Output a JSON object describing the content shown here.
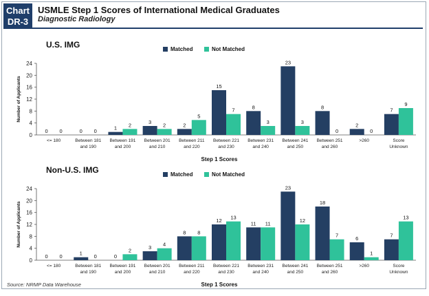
{
  "header": {
    "badge_line1": "Chart",
    "badge_line2": "DR-3",
    "title": "USMLE Step 1 Scores of International Medical Graduates",
    "subtitle": "Diagnostic Radiology"
  },
  "colors": {
    "matched": "#243f63",
    "not_matched": "#2fc29a",
    "accent": "#1f3e6a"
  },
  "source": "Source: NRMP Data Warehouse",
  "chart_data": [
    {
      "type": "bar",
      "title": "U.S. IMG",
      "xlabel": "Step 1 Scores",
      "ylabel": "Number of Applicants",
      "ylim": [
        0,
        24
      ],
      "yticks": [
        0,
        4,
        8,
        12,
        16,
        20,
        24
      ],
      "legend_position": "top",
      "categories": [
        [
          "<= 180"
        ],
        [
          "Between 181",
          "and 190"
        ],
        [
          "Between 191",
          "and 200"
        ],
        [
          "Between 201",
          "and 210"
        ],
        [
          "Between 211",
          "and 220"
        ],
        [
          "Between 221",
          "and 230"
        ],
        [
          "Between 231",
          "and 240"
        ],
        [
          "Between 241",
          "and 250"
        ],
        [
          "Between 251",
          "and 260"
        ],
        [
          ">260"
        ],
        [
          "Score",
          "Unknown"
        ]
      ],
      "series": [
        {
          "name": "Matched",
          "values": [
            0,
            0,
            1,
            3,
            2,
            15,
            8,
            23,
            8,
            2,
            7
          ]
        },
        {
          "name": "Not Matched",
          "values": [
            0,
            0,
            2,
            2,
            5,
            7,
            3,
            3,
            0,
            0,
            9
          ]
        }
      ]
    },
    {
      "type": "bar",
      "title": "Non-U.S. IMG",
      "xlabel": "Step 1 Scores",
      "ylabel": "Number of Applicants",
      "ylim": [
        0,
        24
      ],
      "yticks": [
        0,
        4,
        8,
        12,
        16,
        20,
        24
      ],
      "legend_position": "top",
      "categories": [
        [
          "<= 180"
        ],
        [
          "Between 181",
          "and 190"
        ],
        [
          "Between 191",
          "and 200"
        ],
        [
          "Between 201",
          "and 210"
        ],
        [
          "Between 211",
          "and 220"
        ],
        [
          "Between 221",
          "and 230"
        ],
        [
          "Between 231",
          "and 240"
        ],
        [
          "Between 241",
          "and 250"
        ],
        [
          "Between 251",
          "and 260"
        ],
        [
          ">260"
        ],
        [
          "Score",
          "Unknown"
        ]
      ],
      "series": [
        {
          "name": "Matched",
          "values": [
            0,
            1,
            0,
            3,
            8,
            12,
            11,
            23,
            18,
            6,
            7
          ]
        },
        {
          "name": "Not Matched",
          "values": [
            0,
            0,
            2,
            4,
            8,
            13,
            11,
            12,
            7,
            1,
            13
          ]
        }
      ]
    }
  ]
}
